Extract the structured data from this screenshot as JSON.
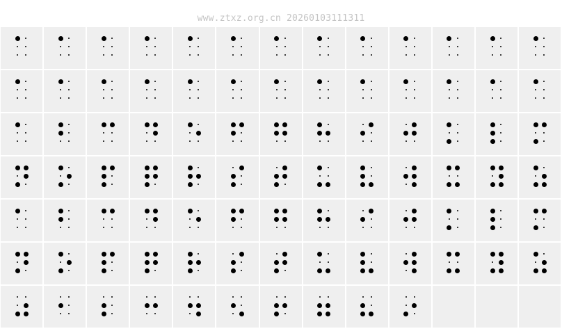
{
  "header": {
    "title": "www.ztxz.org.cn 20260103111311"
  },
  "colors": {
    "cell_background": "#efefef",
    "dot": "#000000",
    "title": "#c4c4c4"
  },
  "columns": 13,
  "cells": [
    "1",
    "1",
    "1",
    "1",
    "1",
    "1",
    "1",
    "1",
    "1",
    "1",
    "1",
    "1",
    "1",
    "1",
    "1",
    "1",
    "1",
    "1",
    "1",
    "1",
    "1",
    "1",
    "1",
    "1",
    "1",
    "1",
    "1",
    "12",
    "14",
    "145",
    "15",
    "124",
    "1245",
    "125",
    "24",
    "245",
    "13",
    "123",
    "134",
    "1345",
    "135",
    "1234",
    "12345",
    "1235",
    "234",
    "2345",
    "136",
    "1236",
    "2456",
    "1346",
    "13456",
    "1356",
    "1",
    "12",
    "14",
    "145",
    "15",
    "124",
    "1245",
    "125",
    "24",
    "245",
    "13",
    "123",
    "134",
    "1345",
    "135",
    "1234",
    "12345",
    "1235",
    "234",
    "2345",
    "136",
    "1236",
    "2456",
    "1346",
    "13456",
    "1356",
    "356",
    "2",
    "23",
    "25",
    "256",
    "26",
    "235",
    "2356",
    "236",
    "35",
    "",
    "",
    ""
  ]
}
